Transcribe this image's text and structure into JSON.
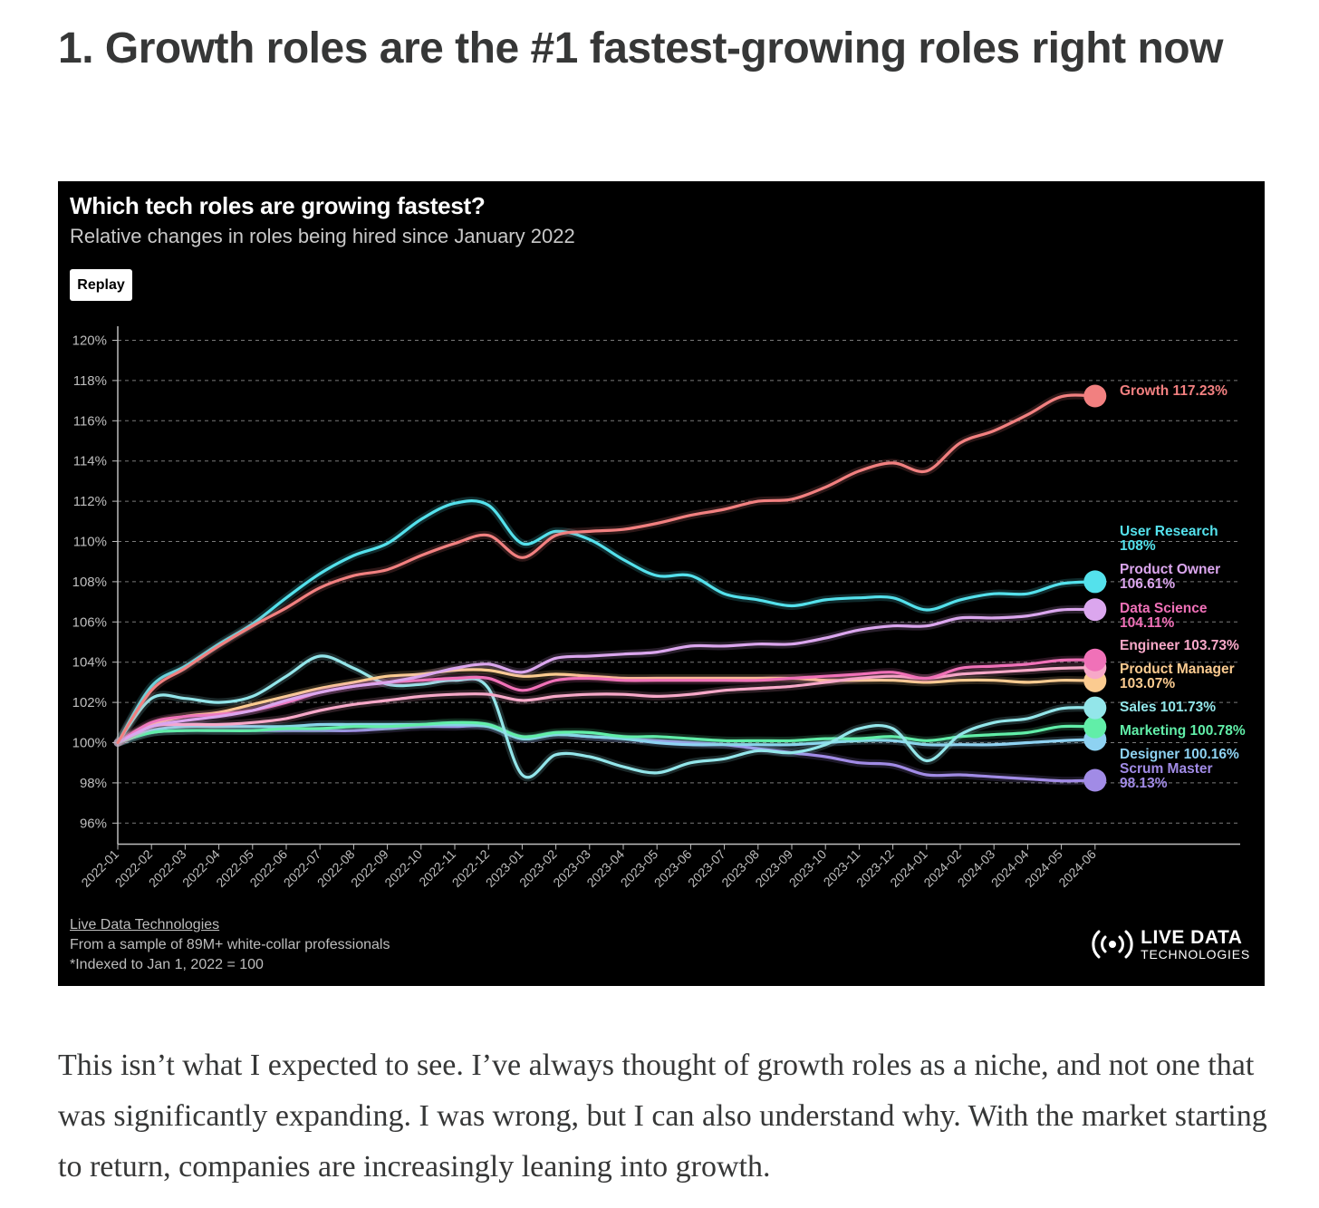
{
  "article": {
    "heading": "1. Growth roles are the #1 fastest-growing roles right now",
    "body": "This isn’t what I expected to see. I’ve always thought of growth roles as a niche, and not one that was significantly expanding. I was wrong, but I can also understand why. With the market starting to return, companies are increasingly leaning into growth."
  },
  "chart": {
    "replay_label": "Replay",
    "source_link": "Live Data Technologies",
    "footnote_sample": "From a sample of 89M+ white-collar professionals",
    "footnote_index": "*Indexed to Jan 1, 2022 = 100",
    "brand_line1": "LIVE DATA",
    "brand_line2": "TECHNOLOGIES",
    "brand_icon": "broadcast-icon"
  },
  "chart_data": {
    "type": "line",
    "title": "Which tech roles are growing fastest?",
    "subtitle": "Relative changes in roles being hired since January 2022",
    "xlabel": "",
    "ylabel": "",
    "ylim": [
      95,
      121
    ],
    "yticks": [
      "96%",
      "98%",
      "100%",
      "102%",
      "104%",
      "106%",
      "108%",
      "110%",
      "112%",
      "114%",
      "116%",
      "118%",
      "120%"
    ],
    "grid": true,
    "legend": "end-of-line labels",
    "x": [
      "2022-01",
      "2022-02",
      "2022-03",
      "2022-04",
      "2022-05",
      "2022-06",
      "2022-07",
      "2022-08",
      "2022-09",
      "2022-10",
      "2022-11",
      "2022-12",
      "2023-01",
      "2023-02",
      "2023-03",
      "2023-04",
      "2023-05",
      "2023-06",
      "2023-07",
      "2023-08",
      "2023-09",
      "2023-10",
      "2023-11",
      "2023-12",
      "2024-01",
      "2024-02",
      "2024-03",
      "2024-04",
      "2024-05",
      "2024-06"
    ],
    "series": [
      {
        "name": "Growth",
        "color": "#f28080",
        "end_label": "Growth 117.23%",
        "values": [
          100,
          102.6,
          103.7,
          104.8,
          105.8,
          106.7,
          107.7,
          108.3,
          108.6,
          109.3,
          109.9,
          110.3,
          109.2,
          110.3,
          110.5,
          110.6,
          110.9,
          111.3,
          111.6,
          112.0,
          112.1,
          112.7,
          113.5,
          113.9,
          113.5,
          114.9,
          115.5,
          116.3,
          117.2,
          117.23
        ]
      },
      {
        "name": "User Research",
        "color": "#54e1ec",
        "end_label": "User Research 108%",
        "values": [
          100,
          102.8,
          103.8,
          104.9,
          105.9,
          107.2,
          108.4,
          109.3,
          109.9,
          111.1,
          111.9,
          111.8,
          109.9,
          110.5,
          110.1,
          109.1,
          108.3,
          108.3,
          107.4,
          107.1,
          106.8,
          107.1,
          107.2,
          107.2,
          106.6,
          107.1,
          107.4,
          107.4,
          107.9,
          108.0
        ]
      },
      {
        "name": "Product Owner",
        "color": "#dba6ee",
        "end_label": "Product Owner 106.61%",
        "values": [
          100,
          100.8,
          101.1,
          101.3,
          101.6,
          102.1,
          102.5,
          102.8,
          103.0,
          103.3,
          103.7,
          103.9,
          103.5,
          104.2,
          104.3,
          104.4,
          104.5,
          104.8,
          104.8,
          104.9,
          104.9,
          105.2,
          105.6,
          105.8,
          105.8,
          106.2,
          106.2,
          106.3,
          106.6,
          106.61
        ]
      },
      {
        "name": "Data Science",
        "color": "#f071b8",
        "end_label": "Data Science 104.11%",
        "values": [
          100,
          101.0,
          101.3,
          101.4,
          101.6,
          102.0,
          102.5,
          102.8,
          103.0,
          103.1,
          103.2,
          103.2,
          102.6,
          103.1,
          103.2,
          103.1,
          103.1,
          103.1,
          103.1,
          103.1,
          103.2,
          103.3,
          103.4,
          103.5,
          103.2,
          103.7,
          103.8,
          103.9,
          104.1,
          104.11
        ]
      },
      {
        "name": "Engineer",
        "color": "#f7a8c8",
        "end_label": "Engineer 103.73%",
        "values": [
          100,
          100.8,
          100.9,
          100.9,
          101.0,
          101.2,
          101.6,
          101.9,
          102.1,
          102.3,
          102.4,
          102.4,
          102.1,
          102.3,
          102.4,
          102.4,
          102.3,
          102.4,
          102.6,
          102.7,
          102.8,
          103.0,
          103.2,
          103.3,
          103.2,
          103.4,
          103.5,
          103.6,
          103.7,
          103.73
        ]
      },
      {
        "name": "Product Manager",
        "color": "#fbcb90",
        "end_label": "Product Manager 103.07%",
        "values": [
          100,
          100.9,
          101.3,
          101.5,
          101.9,
          102.3,
          102.7,
          103.0,
          103.3,
          103.4,
          103.6,
          103.6,
          103.3,
          103.4,
          103.3,
          103.2,
          103.2,
          103.2,
          103.2,
          103.2,
          103.2,
          103.1,
          103.1,
          103.1,
          103.0,
          103.1,
          103.1,
          103.0,
          103.1,
          103.07
        ]
      },
      {
        "name": "Sales",
        "color": "#93e6ea",
        "end_label": "Sales 101.73%",
        "values": [
          100,
          102.2,
          102.2,
          102.0,
          102.3,
          103.3,
          104.3,
          103.7,
          102.9,
          102.9,
          103.1,
          102.7,
          98.4,
          99.4,
          99.3,
          98.8,
          98.5,
          99.0,
          99.2,
          99.6,
          99.5,
          99.9,
          100.7,
          100.7,
          99.1,
          100.4,
          101.0,
          101.2,
          101.7,
          101.73
        ]
      },
      {
        "name": "Marketing",
        "color": "#61eea8",
        "end_label": "Marketing 100.78%",
        "values": [
          100,
          100.5,
          100.6,
          100.6,
          100.6,
          100.7,
          100.7,
          100.8,
          100.8,
          100.9,
          101.0,
          100.9,
          100.3,
          100.5,
          100.5,
          100.3,
          100.3,
          100.2,
          100.1,
          100.1,
          100.1,
          100.2,
          100.2,
          100.3,
          100.1,
          100.3,
          100.4,
          100.5,
          100.8,
          100.78
        ]
      },
      {
        "name": "Designer",
        "color": "#8ed2f2",
        "end_label": "Designer 100.16%",
        "values": [
          100,
          100.6,
          100.8,
          100.8,
          100.8,
          100.8,
          100.9,
          100.9,
          100.9,
          100.9,
          100.9,
          100.8,
          100.2,
          100.4,
          100.3,
          100.2,
          100.0,
          99.9,
          99.9,
          99.9,
          99.9,
          100.0,
          100.1,
          100.1,
          99.9,
          99.9,
          99.9,
          100.0,
          100.1,
          100.16
        ]
      },
      {
        "name": "Scrum Master",
        "color": "#a18be6",
        "end_label": "Scrum Master 98.13%",
        "values": [
          100,
          100.5,
          100.6,
          100.6,
          100.6,
          100.6,
          100.6,
          100.6,
          100.7,
          100.8,
          100.8,
          100.8,
          100.2,
          100.4,
          100.3,
          100.2,
          100.1,
          100.0,
          99.9,
          99.7,
          99.5,
          99.3,
          99.0,
          98.9,
          98.4,
          98.4,
          98.3,
          98.2,
          98.1,
          98.13
        ]
      }
    ],
    "end_labels": [
      {
        "lines": [
          "Growth 117.23%"
        ],
        "color": "#f28080"
      },
      {
        "lines": [
          "User Research",
          "108%"
        ],
        "color": "#54e1ec"
      },
      {
        "lines": [
          "Product Owner",
          "106.61%"
        ],
        "color": "#dba6ee"
      },
      {
        "lines": [
          "Data Science",
          "104.11%"
        ],
        "color": "#f071b8"
      },
      {
        "lines": [
          "Engineer 103.73%"
        ],
        "color": "#f7a8c8"
      },
      {
        "lines": [
          "Product Manager",
          "103.07%"
        ],
        "color": "#fbcb90"
      },
      {
        "lines": [
          "Sales 101.73%"
        ],
        "color": "#93e6ea"
      },
      {
        "lines": [
          "Marketing 100.78%"
        ],
        "color": "#61eea8"
      },
      {
        "lines": [
          "Designer 100.16%"
        ],
        "color": "#8ed2f2"
      },
      {
        "lines": [
          "Scrum Master",
          "98.13%"
        ],
        "color": "#a18be6"
      }
    ]
  }
}
